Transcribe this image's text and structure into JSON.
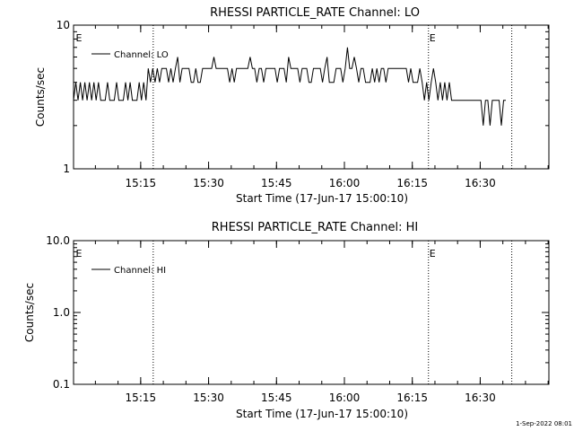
{
  "footer": {
    "timestamp": "1-Sep-2022 08:01"
  },
  "chart_data": [
    {
      "type": "line",
      "title": "RHESSI PARTICLE_RATE Channel: LO",
      "xlabel": "Start Time (17-Jun-17 15:00:10)",
      "ylabel": "Counts/sec",
      "y_scale": "log",
      "ylim": [
        1,
        10
      ],
      "y_ticks": [
        {
          "value": 1,
          "label": "1"
        },
        {
          "value": 10,
          "label": "10"
        }
      ],
      "x_unit": "minutes after 15:00:10",
      "xlim": [
        0,
        105
      ],
      "x_ticks": [
        {
          "value": 14.83,
          "label": "15:15"
        },
        {
          "value": 29.83,
          "label": "15:30"
        },
        {
          "value": 44.83,
          "label": "15:45"
        },
        {
          "value": 59.83,
          "label": "16:00"
        },
        {
          "value": 74.83,
          "label": "16:15"
        },
        {
          "value": 89.83,
          "label": "16:30"
        }
      ],
      "legend": {
        "position": "top-left",
        "entries": [
          "Channel: LO"
        ]
      },
      "event_lines": [
        {
          "x": 17.6,
          "label": "E"
        },
        {
          "x": 78.4,
          "label": ""
        },
        {
          "x": 96.8,
          "label": ""
        }
      ],
      "event_markers": [
        {
          "x": 0.3,
          "label": "E"
        },
        {
          "x": 78.4,
          "label": "E"
        }
      ],
      "series": [
        {
          "name": "Channel: LO",
          "segments": [
            {
              "x_start": 0,
              "x_end": 16.5,
              "base": 3,
              "alt": 4,
              "pattern": "osc"
            },
            {
              "x_start": 16.5,
              "x_end": 19.5,
              "base": 4,
              "alt": 5,
              "pattern": "osc"
            },
            {
              "x_start": 19.5,
              "x_end": 77.5,
              "base": 5,
              "alt": 4,
              "pattern": "mixed"
            },
            {
              "x_start": 77.5,
              "x_end": 84.0,
              "base": 4,
              "alt": 3,
              "pattern": "osc"
            },
            {
              "x_start": 84.0,
              "x_end": 96.0,
              "base": 3,
              "alt": 2,
              "pattern": "mixed"
            }
          ],
          "spikes": [
            {
              "x": 23.0,
              "y": 6
            },
            {
              "x": 31.0,
              "y": 6
            },
            {
              "x": 39.0,
              "y": 6
            },
            {
              "x": 47.5,
              "y": 6
            },
            {
              "x": 56.0,
              "y": 6
            },
            {
              "x": 62.0,
              "y": 6
            },
            {
              "x": 60.5,
              "y": 7
            },
            {
              "x": 91.8,
              "y": 2
            },
            {
              "x": 94.5,
              "y": 2
            },
            {
              "x": 79.3,
              "y": 5
            }
          ]
        }
      ]
    },
    {
      "type": "line",
      "title": "RHESSI PARTICLE_RATE Channel: HI",
      "xlabel": "Start Time (17-Jun-17 15:00:10)",
      "ylabel": "Counts/sec",
      "y_scale": "log",
      "ylim": [
        0.1,
        10
      ],
      "y_ticks": [
        {
          "value": 0.1,
          "label": "0.1"
        },
        {
          "value": 1,
          "label": "1.0"
        },
        {
          "value": 10,
          "label": "10.0"
        }
      ],
      "x_unit": "minutes after 15:00:10",
      "xlim": [
        0,
        105
      ],
      "x_ticks": [
        {
          "value": 14.83,
          "label": "15:15"
        },
        {
          "value": 29.83,
          "label": "15:30"
        },
        {
          "value": 44.83,
          "label": "15:45"
        },
        {
          "value": 59.83,
          "label": "16:00"
        },
        {
          "value": 74.83,
          "label": "16:15"
        },
        {
          "value": 89.83,
          "label": "16:30"
        }
      ],
      "legend": {
        "position": "top-left",
        "entries": [
          "Channel: HI"
        ]
      },
      "event_lines": [
        {
          "x": 17.6,
          "label": ""
        },
        {
          "x": 78.4,
          "label": ""
        },
        {
          "x": 96.8,
          "label": ""
        }
      ],
      "event_markers": [
        {
          "x": 0.3,
          "label": "E"
        },
        {
          "x": 78.4,
          "label": "E"
        }
      ],
      "series": [
        {
          "name": "Channel: HI",
          "segments": [],
          "spikes": []
        }
      ]
    }
  ]
}
